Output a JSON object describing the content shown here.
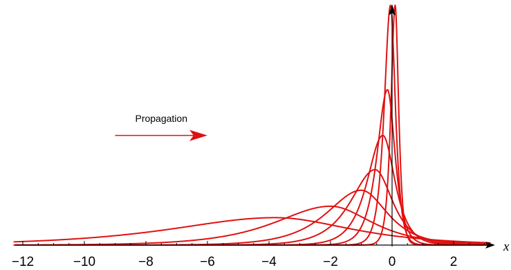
{
  "chart_data": {
    "type": "line",
    "title": "",
    "xlabel": "x",
    "ylabel": "",
    "xlim": [
      -12.3,
      3.2
    ],
    "ylim": [
      0,
      1
    ],
    "x_ticks": [
      -12,
      -10,
      -8,
      -6,
      -4,
      -2,
      0,
      2
    ],
    "x_tick_labels": [
      "−12",
      "−10",
      "−8",
      "−6",
      "−4",
      "−2",
      "0",
      "2"
    ],
    "x_minor_step": 0.5,
    "grid": false,
    "legend": "none",
    "line_color": "#e01010",
    "series": [
      {
        "peak_x": -3.8,
        "peak_height": 0.12,
        "left_width": 3.0,
        "right_width": 2.2
      },
      {
        "peak_x": -2.0,
        "peak_height": 0.17,
        "left_width": 1.6,
        "right_width": 1.2
      },
      {
        "peak_x": -1.0,
        "peak_height": 0.24,
        "left_width": 1.0,
        "right_width": 0.75
      },
      {
        "peak_x": -0.55,
        "peak_height": 0.33,
        "left_width": 0.7,
        "right_width": 0.5
      },
      {
        "peak_x": -0.3,
        "peak_height": 0.48,
        "left_width": 0.45,
        "right_width": 0.35
      },
      {
        "peak_x": -0.15,
        "peak_height": 0.68,
        "left_width": 0.3,
        "right_width": 0.22
      },
      {
        "peak_x": -0.05,
        "peak_height": 1.05,
        "left_width": 0.18,
        "right_width": 0.14
      },
      {
        "peak_x": 0.1,
        "peak_height": 1.05,
        "left_width": 0.12,
        "right_width": 0.1
      }
    ],
    "annotations": [
      {
        "text": "Propagation",
        "arrow_from_x": -9.0,
        "arrow_to_x": -6.0,
        "arrow_y": 0.48,
        "text_x": -7.5,
        "text_y": 0.54
      }
    ]
  }
}
